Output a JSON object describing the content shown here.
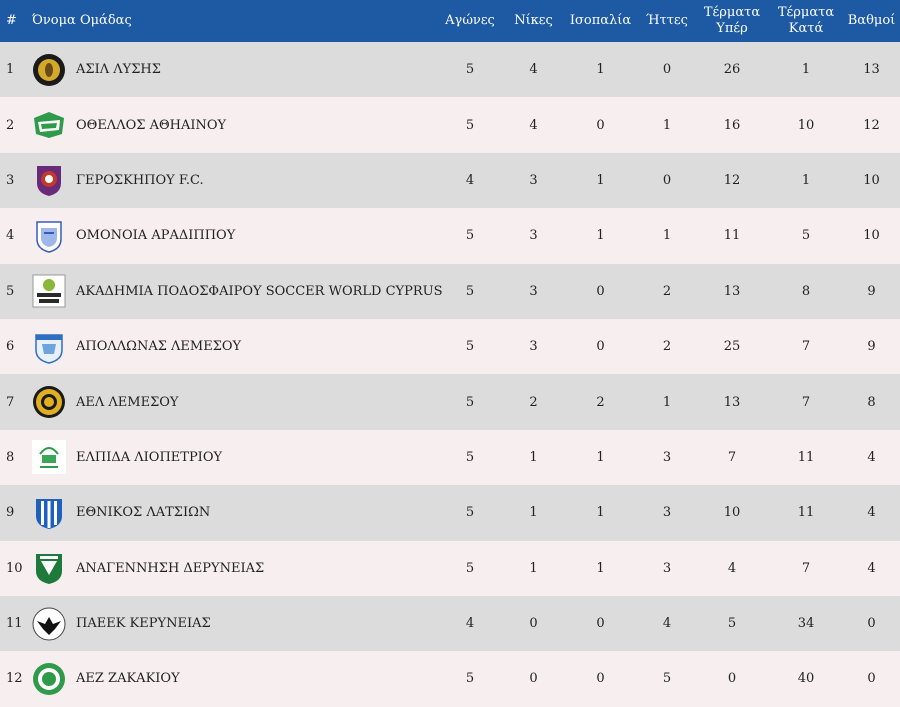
{
  "header": {
    "pos": "#",
    "team": "Όνομα Ομάδας",
    "played": "Αγώνες",
    "wins": "Νίκες",
    "draws": "Ισοπαλία",
    "losses": "Ήττες",
    "gf": "Τέρματα Υπέρ",
    "ga": "Τέρματα Κατά",
    "pts": "Βαθμοί"
  },
  "colors": {
    "header_bg": "#1e5aa3",
    "row_odd": "#dcdcdc",
    "row_even": "#f7eef0"
  },
  "rows": [
    {
      "pos": "1",
      "team": "ΑΣΙΛ ΛΥΣΗΣ",
      "logo": "asil-lysis-crest-icon",
      "played": "5",
      "wins": "4",
      "draws": "1",
      "losses": "0",
      "gf": "26",
      "ga": "1",
      "pts": "13"
    },
    {
      "pos": "2",
      "team": "ΟΘΕΛΛΟΣ ΑΘΗΑΙΝΟΥ",
      "logo": "othellos-athienou-crest-icon",
      "played": "5",
      "wins": "4",
      "draws": "0",
      "losses": "1",
      "gf": "16",
      "ga": "10",
      "pts": "12"
    },
    {
      "pos": "3",
      "team": "ΓΕΡΟΣΚΗΠΟΥ F.C.",
      "logo": "geroskipou-crest-icon",
      "played": "4",
      "wins": "3",
      "draws": "1",
      "losses": "0",
      "gf": "12",
      "ga": "1",
      "pts": "10"
    },
    {
      "pos": "4",
      "team": "ΟΜΟΝΟΙΑ ΑΡΑΔΙΠΠΟΥ",
      "logo": "omonoia-aradippou-crest-icon",
      "played": "5",
      "wins": "3",
      "draws": "1",
      "losses": "1",
      "gf": "11",
      "ga": "5",
      "pts": "10"
    },
    {
      "pos": "5",
      "team": "ΑΚΑΔΗΜΙΑ ΠΟΔΟΣΦΑΙΡΟΥ SOCCER WORLD CYPRUS",
      "logo": "soccer-world-crest-icon",
      "played": "5",
      "wins": "3",
      "draws": "0",
      "losses": "2",
      "gf": "13",
      "ga": "8",
      "pts": "9"
    },
    {
      "pos": "6",
      "team": "ΑΠΟΛΛΩΝΑΣ ΛΕΜΕΣΟΥ",
      "logo": "apollon-limassol-crest-icon",
      "played": "5",
      "wins": "3",
      "draws": "0",
      "losses": "2",
      "gf": "25",
      "ga": "7",
      "pts": "9"
    },
    {
      "pos": "7",
      "team": "ΑΕΛ ΛΕΜΕΣΟΥ",
      "logo": "ael-limassol-crest-icon",
      "played": "5",
      "wins": "2",
      "draws": "2",
      "losses": "1",
      "gf": "13",
      "ga": "7",
      "pts": "8"
    },
    {
      "pos": "8",
      "team": "ΕΛΠΙΔΑ ΛΙΟΠΕΤΡΙΟΥ",
      "logo": "elpida-liopetriou-crest-icon",
      "played": "5",
      "wins": "1",
      "draws": "1",
      "losses": "3",
      "gf": "7",
      "ga": "11",
      "pts": "4"
    },
    {
      "pos": "9",
      "team": "ΕΘΝΙΚΟΣ ΛΑΤΣΙΩΝ",
      "logo": "ethnikos-latsion-crest-icon",
      "played": "5",
      "wins": "1",
      "draws": "1",
      "losses": "3",
      "gf": "10",
      "ga": "11",
      "pts": "4"
    },
    {
      "pos": "10",
      "team": "ΑΝΑΓΕΝΝΗΣΗ ΔΕΡΥΝΕΙΑΣ",
      "logo": "anagennisi-deryneias-crest-icon",
      "played": "5",
      "wins": "1",
      "draws": "1",
      "losses": "3",
      "gf": "4",
      "ga": "7",
      "pts": "4"
    },
    {
      "pos": "11",
      "team": "ΠΑΕΕΚ ΚΕΡΥΝΕΙΑΣ",
      "logo": "paeek-keryneias-crest-icon",
      "played": "4",
      "wins": "0",
      "draws": "0",
      "losses": "4",
      "gf": "5",
      "ga": "34",
      "pts": "0"
    },
    {
      "pos": "12",
      "team": "ΑΕΖ ΖΑΚΑΚΙΟΥ",
      "logo": "aez-zakakiou-crest-icon",
      "played": "5",
      "wins": "0",
      "draws": "0",
      "losses": "5",
      "gf": "0",
      "ga": "40",
      "pts": "0"
    }
  ]
}
